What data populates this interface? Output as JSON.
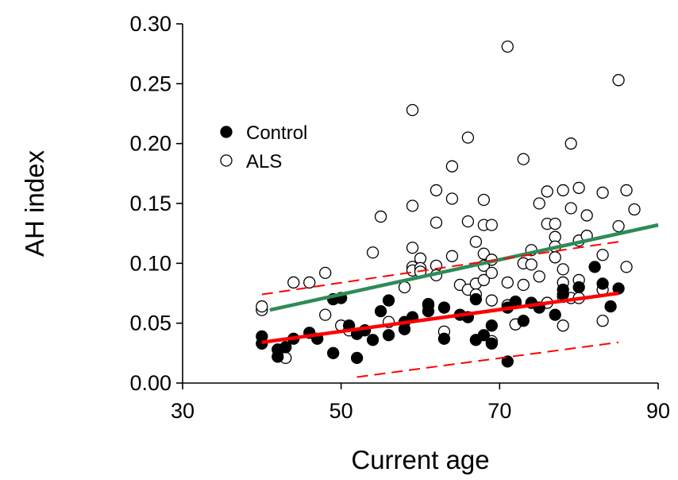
{
  "chart_data": {
    "type": "scatter",
    "xlabel": "Current age",
    "ylabel": "AH index",
    "xlim": [
      30,
      90
    ],
    "ylim": [
      0,
      0.3
    ],
    "xticks": [
      "30",
      "50",
      "70",
      "90"
    ],
    "yticks": [
      "0.00",
      "0.05",
      "0.10",
      "0.15",
      "0.20",
      "0.25",
      "0.30"
    ],
    "grid": false,
    "legend_position": "upper-left",
    "colors": {
      "control_fit": "#ff0000",
      "als_fit": "#2e8b57",
      "ci": "#ff0000"
    },
    "series": [
      {
        "name": "Control",
        "marker": "filled-circle",
        "points": [
          [
            40,
            0.039
          ],
          [
            40,
            0.033
          ],
          [
            42,
            0.022
          ],
          [
            42,
            0.028
          ],
          [
            43,
            0.03
          ],
          [
            44,
            0.037
          ],
          [
            46,
            0.042
          ],
          [
            47,
            0.037
          ],
          [
            49,
            0.07
          ],
          [
            50,
            0.071
          ],
          [
            49,
            0.025
          ],
          [
            51,
            0.048
          ],
          [
            52,
            0.041
          ],
          [
            52,
            0.021
          ],
          [
            53,
            0.044
          ],
          [
            54,
            0.036
          ],
          [
            55,
            0.06
          ],
          [
            56,
            0.069
          ],
          [
            56,
            0.04
          ],
          [
            58,
            0.051
          ],
          [
            58,
            0.045
          ],
          [
            59,
            0.055
          ],
          [
            61,
            0.065
          ],
          [
            61,
            0.06
          ],
          [
            63,
            0.063
          ],
          [
            63,
            0.037
          ],
          [
            65,
            0.057
          ],
          [
            66,
            0.055
          ],
          [
            67,
            0.07
          ],
          [
            67,
            0.036
          ],
          [
            68,
            0.04
          ],
          [
            69,
            0.048
          ],
          [
            69,
            0.033
          ],
          [
            71,
            0.063
          ],
          [
            71,
            0.018
          ],
          [
            72,
            0.067
          ],
          [
            73,
            0.052
          ],
          [
            74,
            0.067
          ],
          [
            75,
            0.063
          ],
          [
            77,
            0.057
          ],
          [
            78,
            0.078
          ],
          [
            78,
            0.074
          ],
          [
            80,
            0.08
          ],
          [
            82,
            0.097
          ],
          [
            83,
            0.083
          ],
          [
            84,
            0.064
          ],
          [
            85,
            0.079
          ]
        ]
      },
      {
        "name": "ALS",
        "marker": "open-circle",
        "points": [
          [
            40,
            0.061
          ],
          [
            40,
            0.064
          ],
          [
            43,
            0.021
          ],
          [
            44,
            0.084
          ],
          [
            46,
            0.084
          ],
          [
            48,
            0.092
          ],
          [
            48,
            0.057
          ],
          [
            50,
            0.048
          ],
          [
            51,
            0.044
          ],
          [
            54,
            0.109
          ],
          [
            55,
            0.139
          ],
          [
            56,
            0.051
          ],
          [
            58,
            0.08
          ],
          [
            59,
            0.228
          ],
          [
            59,
            0.148
          ],
          [
            59,
            0.113
          ],
          [
            59,
            0.097
          ],
          [
            59,
            0.094
          ],
          [
            60,
            0.104
          ],
          [
            60,
            0.096
          ],
          [
            60,
            0.093
          ],
          [
            61,
            0.066
          ],
          [
            62,
            0.161
          ],
          [
            62,
            0.134
          ],
          [
            62,
            0.098
          ],
          [
            62,
            0.09
          ],
          [
            63,
            0.043
          ],
          [
            64,
            0.181
          ],
          [
            64,
            0.154
          ],
          [
            64,
            0.106
          ],
          [
            65,
            0.082
          ],
          [
            66,
            0.205
          ],
          [
            66,
            0.135
          ],
          [
            66,
            0.078
          ],
          [
            67,
            0.118
          ],
          [
            67,
            0.083
          ],
          [
            67,
            0.074
          ],
          [
            68,
            0.153
          ],
          [
            68,
            0.132
          ],
          [
            68,
            0.108
          ],
          [
            68,
            0.098
          ],
          [
            68,
            0.086
          ],
          [
            69,
            0.132
          ],
          [
            69,
            0.103
          ],
          [
            69,
            0.092
          ],
          [
            69,
            0.069
          ],
          [
            69,
            0.035
          ],
          [
            71,
            0.281
          ],
          [
            71,
            0.084
          ],
          [
            71,
            0.065
          ],
          [
            72,
            0.068
          ],
          [
            72,
            0.049
          ],
          [
            73,
            0.187
          ],
          [
            73,
            0.1
          ],
          [
            73,
            0.082
          ],
          [
            74,
            0.111
          ],
          [
            74,
            0.099
          ],
          [
            75,
            0.15
          ],
          [
            75,
            0.089
          ],
          [
            76,
            0.16
          ],
          [
            76,
            0.133
          ],
          [
            76,
            0.067
          ],
          [
            77,
            0.133
          ],
          [
            77,
            0.122
          ],
          [
            77,
            0.114
          ],
          [
            77,
            0.105
          ],
          [
            78,
            0.161
          ],
          [
            78,
            0.095
          ],
          [
            78,
            0.084
          ],
          [
            78,
            0.072
          ],
          [
            78,
            0.048
          ],
          [
            79,
            0.2
          ],
          [
            79,
            0.146
          ],
          [
            79,
            0.071
          ],
          [
            80,
            0.163
          ],
          [
            80,
            0.119
          ],
          [
            80,
            0.086
          ],
          [
            80,
            0.071
          ],
          [
            81,
            0.14
          ],
          [
            81,
            0.123
          ],
          [
            83,
            0.159
          ],
          [
            83,
            0.107
          ],
          [
            83,
            0.078
          ],
          [
            83,
            0.052
          ],
          [
            85,
            0.253
          ],
          [
            85,
            0.131
          ],
          [
            86,
            0.161
          ],
          [
            86,
            0.097
          ],
          [
            87,
            0.145
          ]
        ]
      }
    ],
    "fit_lines": [
      {
        "series": "ALS",
        "color": "#2e8b57",
        "style": "solid",
        "from": [
          41,
          0.061
        ],
        "to": [
          90,
          0.132
        ]
      },
      {
        "series": "Control",
        "color": "#ff0000",
        "style": "solid",
        "from": [
          40,
          0.034
        ],
        "to": [
          85,
          0.075
        ]
      },
      {
        "series": "Control",
        "color": "#ff0000",
        "style": "dashed",
        "from": [
          40,
          0.074
        ],
        "to": [
          85,
          0.118
        ]
      },
      {
        "series": "Control",
        "color": "#ff0000",
        "style": "dashed",
        "from": [
          52,
          0.005
        ],
        "to": [
          85,
          0.034
        ]
      }
    ]
  }
}
